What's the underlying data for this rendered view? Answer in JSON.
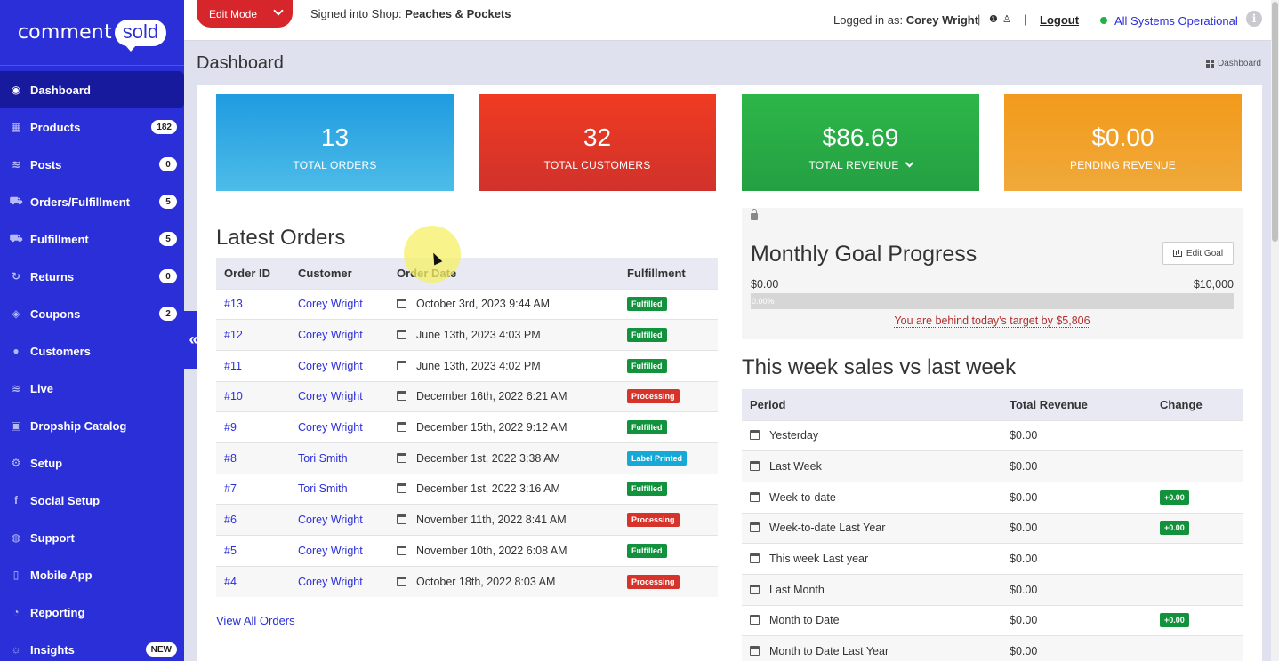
{
  "brand": {
    "part1": "comment",
    "part2": "sold"
  },
  "sidebar": {
    "items": [
      {
        "label": "Dashboard",
        "icon": "dashboard-icon",
        "glyph": "◉",
        "badge": "",
        "active": true
      },
      {
        "label": "Products",
        "icon": "grid-icon",
        "glyph": "▦",
        "badge": "182"
      },
      {
        "label": "Posts",
        "icon": "rss-icon",
        "glyph": "≋",
        "badge": "0"
      },
      {
        "label": "Orders/Fulfillment",
        "icon": "truck-icon",
        "glyph": "⛟",
        "badge": "5"
      },
      {
        "label": "Fulfillment",
        "icon": "truck-icon",
        "glyph": "⛟",
        "badge": "5"
      },
      {
        "label": "Returns",
        "icon": "refresh-icon",
        "glyph": "↻",
        "badge": "0"
      },
      {
        "label": "Coupons",
        "icon": "tag-icon",
        "glyph": "◈",
        "badge": "2"
      },
      {
        "label": "Customers",
        "icon": "user-icon",
        "glyph": "●",
        "badge": ""
      },
      {
        "label": "Live",
        "icon": "rss-icon",
        "glyph": "≋",
        "badge": ""
      },
      {
        "label": "Dropship Catalog",
        "icon": "box-icon",
        "glyph": "▣",
        "badge": ""
      },
      {
        "label": "Setup",
        "icon": "gears-icon",
        "glyph": "⚙",
        "badge": ""
      },
      {
        "label": "Social Setup",
        "icon": "facebook-icon",
        "glyph": "f",
        "badge": ""
      },
      {
        "label": "Support",
        "icon": "chat-icon",
        "glyph": "◍",
        "badge": ""
      },
      {
        "label": "Mobile App",
        "icon": "mobile-icon",
        "glyph": "▯",
        "badge": ""
      },
      {
        "label": "Reporting",
        "icon": "pie-chart-icon",
        "glyph": "◔",
        "badge": ""
      },
      {
        "label": "Insights",
        "icon": "bulb-icon",
        "glyph": "☼",
        "badge": "NEW"
      }
    ],
    "collapse_glyph": "«"
  },
  "topbar": {
    "edit_mode": "Edit Mode",
    "signed_prefix": "Signed into Shop: ",
    "shop_name": "Peaches & Pockets",
    "logged_prefix": "Logged in as: ",
    "user_name": "Corey Wright",
    "logout": "Logout",
    "status": "All Systems Operational",
    "status_color": "#21b14a"
  },
  "page": {
    "title": "Dashboard",
    "breadcrumb": "Dashboard"
  },
  "stats": [
    {
      "value": "13",
      "label": "TOTAL ORDERS",
      "color_top": "#1f9be0",
      "color_bottom": "#4dbce8"
    },
    {
      "value": "32",
      "label": "TOTAL CUSTOMERS",
      "color_top": "#f03b22",
      "color_bottom": "#d0322b"
    },
    {
      "value": "$86.69",
      "label": "TOTAL REVENUE",
      "color_top": "#2db648",
      "color_bottom": "#24a043"
    },
    {
      "value": "$0.00",
      "label": "PENDING REVENUE",
      "color_top": "#f29a1b",
      "color_bottom": "#f0a93a"
    }
  ],
  "latest_orders": {
    "title": "Latest Orders",
    "columns": [
      "Order ID",
      "Customer",
      "Order Date",
      "Fulfillment"
    ],
    "rows": [
      {
        "id": "#13",
        "customer": "Corey Wright",
        "date": "October 3rd, 2023 9:44 AM",
        "status": "Fulfilled"
      },
      {
        "id": "#12",
        "customer": "Corey Wright",
        "date": "June 13th, 2023 4:03 PM",
        "status": "Fulfilled"
      },
      {
        "id": "#11",
        "customer": "Corey Wright",
        "date": "June 13th, 2023 4:02 PM",
        "status": "Fulfilled"
      },
      {
        "id": "#10",
        "customer": "Corey Wright",
        "date": "December 16th, 2022 6:21 AM",
        "status": "Processing"
      },
      {
        "id": "#9",
        "customer": "Corey Wright",
        "date": "December 15th, 2022 9:12 AM",
        "status": "Fulfilled"
      },
      {
        "id": "#8",
        "customer": "Tori Smith",
        "date": "December 1st, 2022 3:38 AM",
        "status": "Label Printed"
      },
      {
        "id": "#7",
        "customer": "Tori Smith",
        "date": "December 1st, 2022 3:16 AM",
        "status": "Fulfilled"
      },
      {
        "id": "#6",
        "customer": "Corey Wright",
        "date": "November 11th, 2022 8:41 AM",
        "status": "Processing"
      },
      {
        "id": "#5",
        "customer": "Corey Wright",
        "date": "November 10th, 2022 6:08 AM",
        "status": "Fulfilled"
      },
      {
        "id": "#4",
        "customer": "Corey Wright",
        "date": "October 18th, 2022 8:03 AM",
        "status": "Processing"
      }
    ],
    "view_all": "View All Orders",
    "status_colors": {
      "Fulfilled": "#12923c",
      "Processing": "#d6342b",
      "Label Printed": "#16a8d6"
    }
  },
  "goal": {
    "title": "Monthly Goal Progress",
    "edit_label": "Edit Goal",
    "min": "$0.00",
    "max": "$10,000",
    "progress_text": "0.00%",
    "progress_fraction": 0,
    "behind_text": "You are behind today's target by $5,806"
  },
  "weekly": {
    "title": "This week sales vs last week",
    "columns": [
      "Period",
      "Total Revenue",
      "Change"
    ],
    "rows": [
      {
        "period": "Yesterday",
        "revenue": "$0.00",
        "change": ""
      },
      {
        "period": "Last Week",
        "revenue": "$0.00",
        "change": ""
      },
      {
        "period": "Week-to-date",
        "revenue": "$0.00",
        "change": "+0.00"
      },
      {
        "period": "Week-to-date Last Year",
        "revenue": "$0.00",
        "change": "+0.00"
      },
      {
        "period": "This week Last year",
        "revenue": "$0.00",
        "change": ""
      },
      {
        "period": "Last Month",
        "revenue": "$0.00",
        "change": ""
      },
      {
        "period": "Month to Date",
        "revenue": "$0.00",
        "change": "+0.00"
      },
      {
        "period": "Month to Date Last Year",
        "revenue": "$0.00",
        "change": ""
      }
    ]
  }
}
